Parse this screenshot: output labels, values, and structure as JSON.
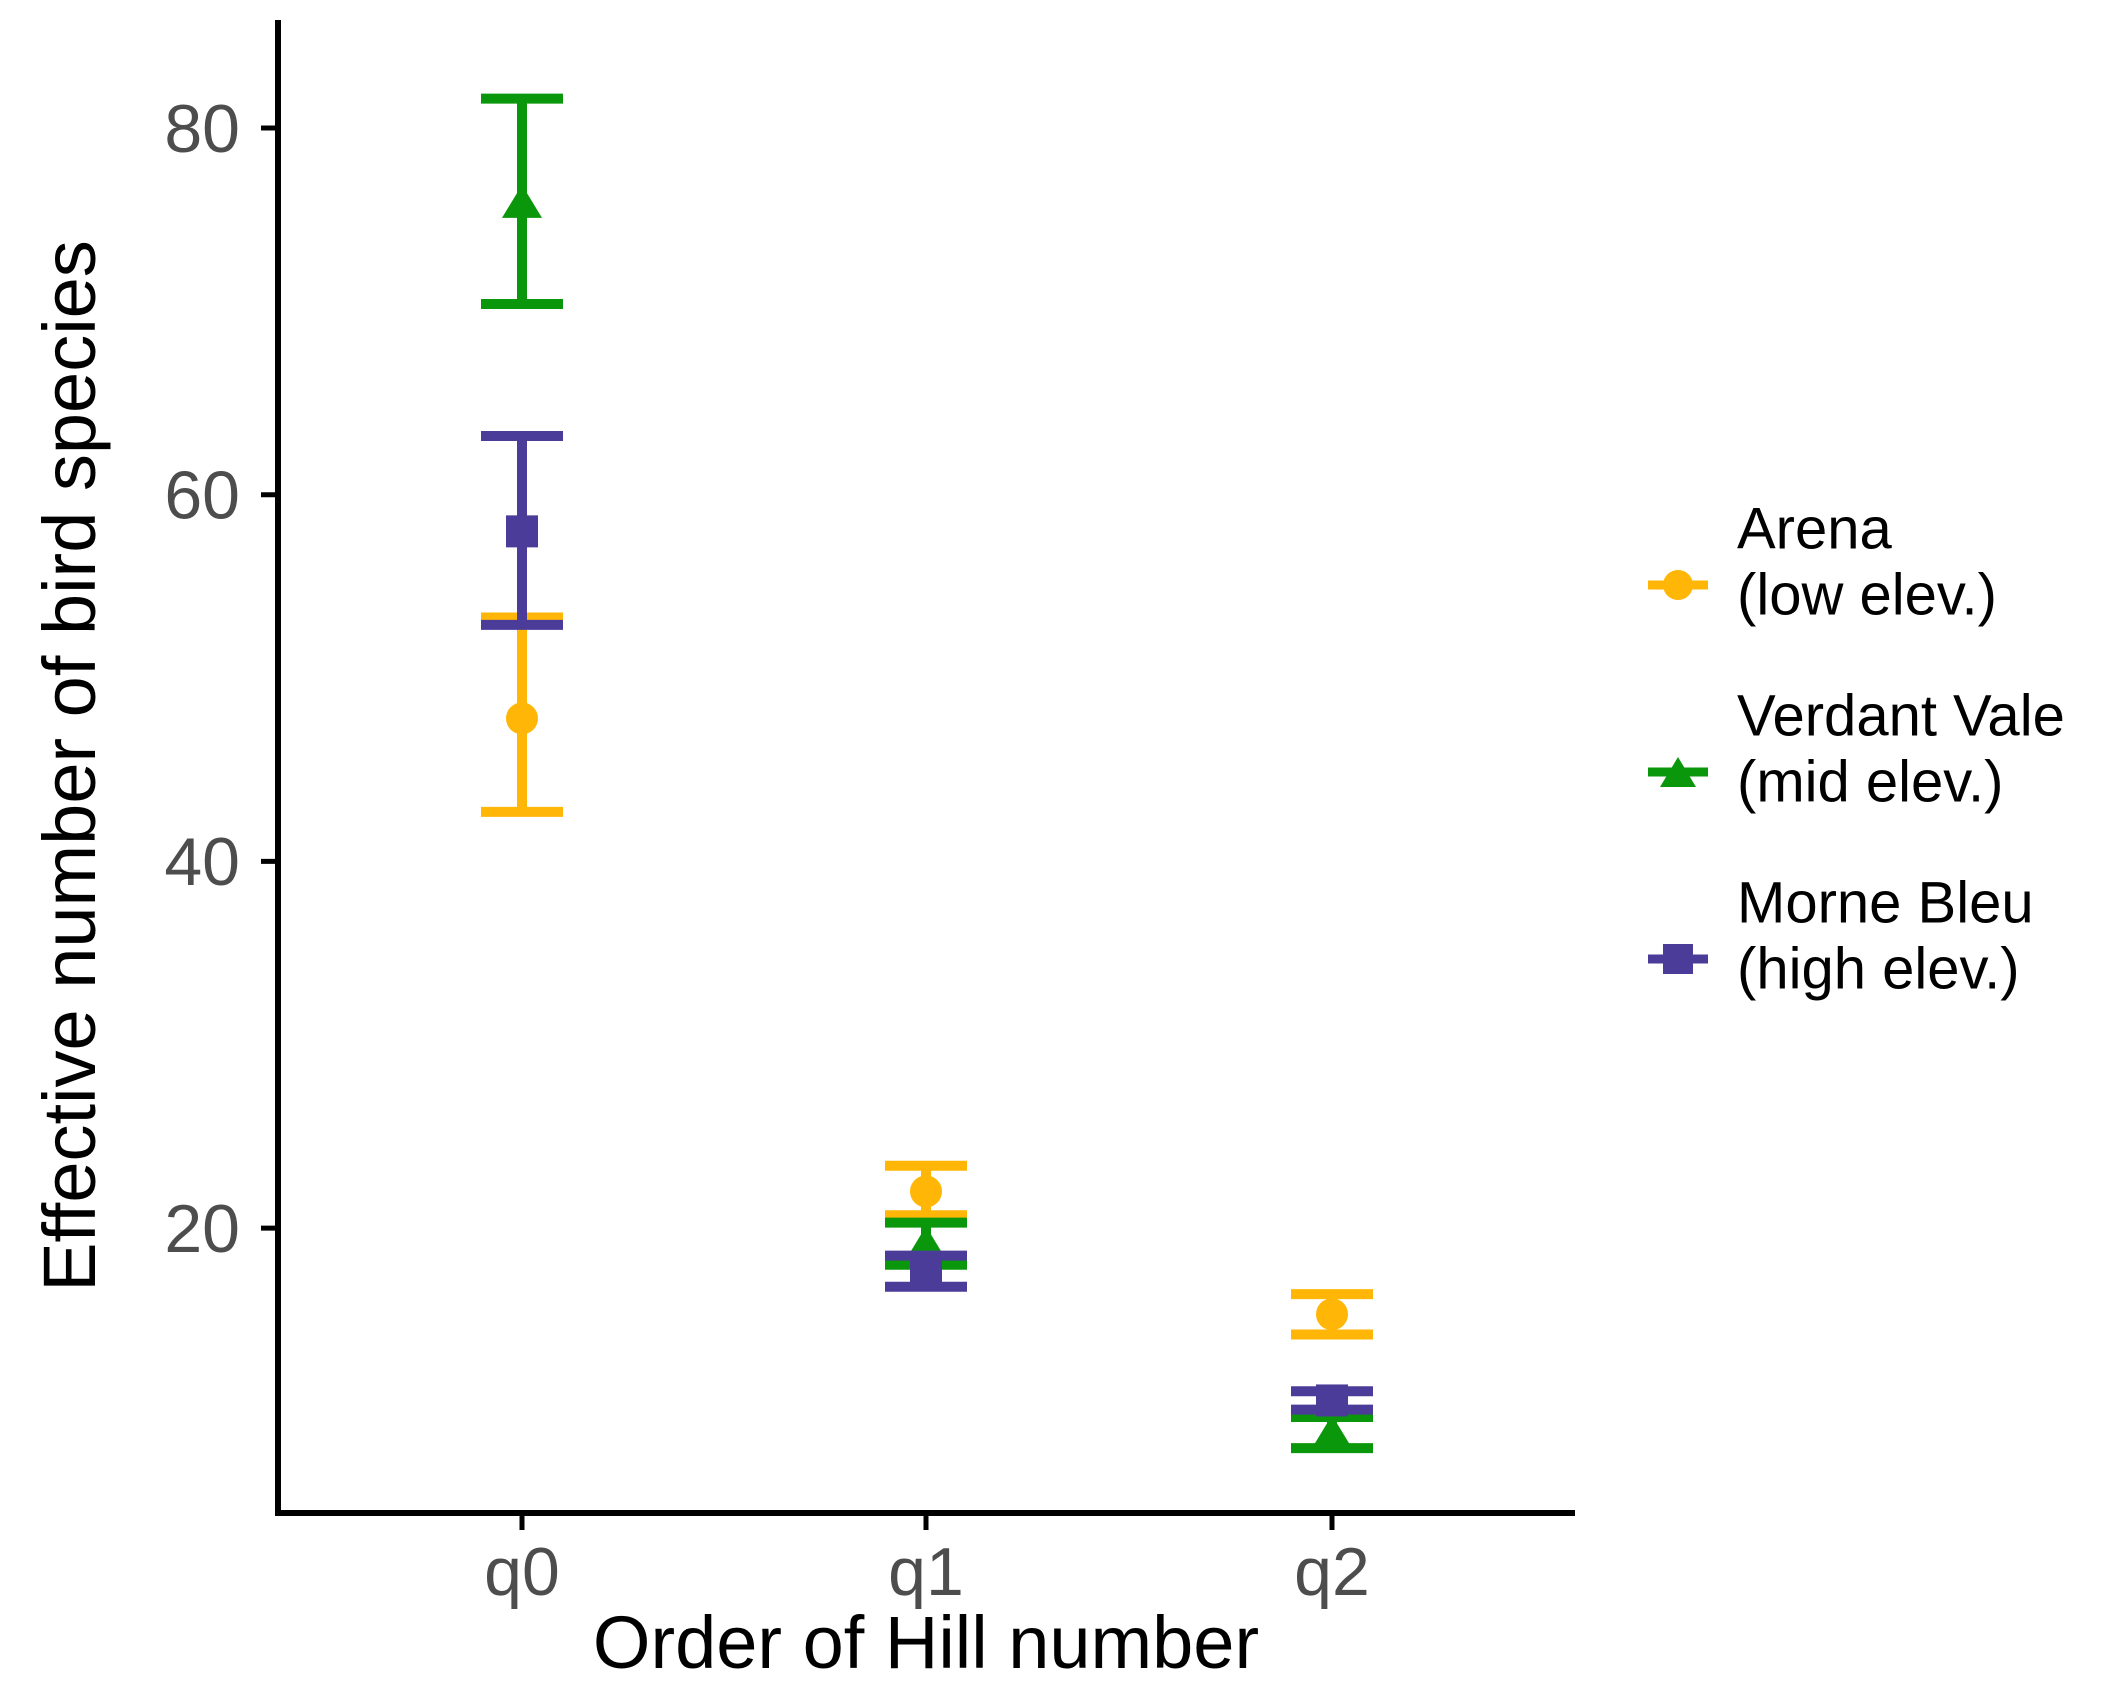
{
  "figure": {
    "background": "#ffffff",
    "axis_color": "#000000",
    "tick_label_color": "#4d4d4d"
  },
  "chart_data": {
    "type": "scatter",
    "subtype": "point-with-error-bars",
    "title": "",
    "xlabel": "Order of Hill number",
    "ylabel": "Effective number of bird species",
    "categories": [
      "q0",
      "q1",
      "q2"
    ],
    "y_ticks": [
      20,
      40,
      60,
      80
    ],
    "ylim": [
      4.5,
      85.9
    ],
    "grid": false,
    "legend_position": "right-center",
    "series": [
      {
        "name": "Arena",
        "elevation_label": "(low elev.)",
        "marker": "circle",
        "color": "#FFB606",
        "values": [
          47.8,
          22.0,
          15.3
        ],
        "ci_low": [
          42.7,
          20.7,
          14.2
        ],
        "ci_high": [
          53.3,
          23.4,
          16.4
        ]
      },
      {
        "name": "Verdant Vale",
        "elevation_label": "(mid elev.)",
        "marker": "triangle",
        "color": "#0B970B",
        "values": [
          76.0,
          19.2,
          8.9
        ],
        "ci_low": [
          70.4,
          18.0,
          8.0
        ],
        "ci_high": [
          81.6,
          20.3,
          9.7
        ]
      },
      {
        "name": "Morne Bleu",
        "elevation_label": "(high elev.)",
        "marker": "square",
        "color": "#4B3C99",
        "values": [
          58.0,
          17.6,
          10.6
        ],
        "ci_low": [
          52.9,
          16.8,
          10.1
        ],
        "ci_high": [
          63.2,
          18.5,
          11.1
        ]
      }
    ]
  }
}
